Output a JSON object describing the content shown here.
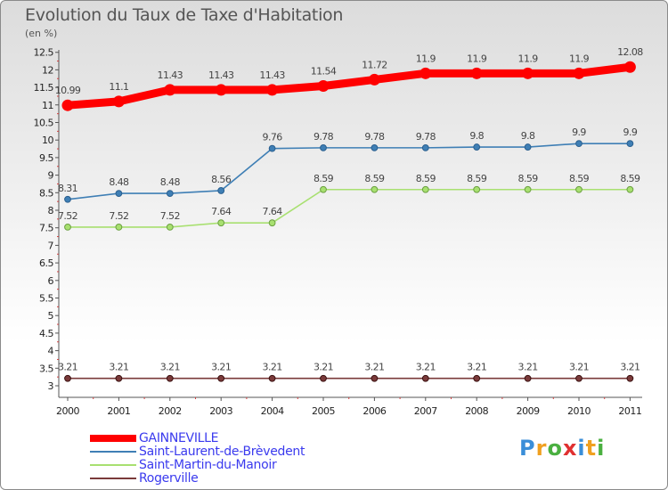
{
  "header": {
    "title": "Evolution du Taux de Taxe d'Habitation",
    "unit": "(en %)"
  },
  "chart_data": {
    "type": "line",
    "title": "Evolution du Taux de Taxe d'Habitation",
    "ylabel": "(en %)",
    "xlabel": "",
    "x": [
      "2000",
      "2001",
      "2002",
      "2003",
      "2004",
      "2005",
      "2006",
      "2007",
      "2008",
      "2009",
      "2010",
      "2011"
    ],
    "y_ticks": [
      "3",
      "3.5",
      "4",
      "4.5",
      "5",
      "5.5",
      "6",
      "6.5",
      "7",
      "7.5",
      "8",
      "8.5",
      "9",
      "9.5",
      "10",
      "10.5",
      "11",
      "11.5",
      "12",
      "12.5"
    ],
    "ylim": [
      3,
      12.5
    ],
    "grid": false,
    "legend_position": "bottom-left",
    "series": [
      {
        "name": "GAINNEVILLE",
        "color": "#ff0000",
        "values": [
          10.99,
          11.1,
          11.43,
          11.43,
          11.43,
          11.54,
          11.72,
          11.9,
          11.9,
          11.9,
          11.9,
          12.08
        ],
        "labels": [
          "10.99",
          "11.1",
          "11.43",
          "11.43",
          "11.43",
          "11.54",
          "11.72",
          "11.9",
          "11.9",
          "11.9",
          "11.9",
          "12.08"
        ]
      },
      {
        "name": "Saint-Laurent-de-Brèvedent",
        "color": "#3f7fb5",
        "values": [
          8.31,
          8.48,
          8.48,
          8.56,
          9.76,
          9.78,
          9.78,
          9.78,
          9.8,
          9.8,
          9.9,
          9.9
        ],
        "labels": [
          "8.31",
          "8.48",
          "8.48",
          "8.56",
          "9.76",
          "9.78",
          "9.78",
          "9.78",
          "9.8",
          "9.8",
          "9.9",
          "9.9"
        ]
      },
      {
        "name": "Saint-Martin-du-Manoir",
        "color": "#a8e070",
        "values": [
          7.52,
          7.52,
          7.52,
          7.64,
          7.64,
          8.59,
          8.59,
          8.59,
          8.59,
          8.59,
          8.59,
          8.59
        ],
        "labels": [
          "7.52",
          "7.52",
          "7.52",
          "7.64",
          "7.64",
          "8.59",
          "8.59",
          "8.59",
          "8.59",
          "8.59",
          "8.59",
          "8.59"
        ]
      },
      {
        "name": "Rogerville",
        "color": "#7a3a3a",
        "values": [
          3.21,
          3.21,
          3.21,
          3.21,
          3.21,
          3.21,
          3.21,
          3.21,
          3.21,
          3.21,
          3.21,
          3.21
        ],
        "labels": [
          "3.21",
          "3.21",
          "3.21",
          "3.21",
          "3.21",
          "3.21",
          "3.21",
          "3.21",
          "3.21",
          "3.21",
          "3.21",
          "3.21"
        ]
      }
    ]
  },
  "logo": {
    "text": "Proxiti",
    "letters": [
      {
        "ch": "P",
        "color": "#3a8ed8"
      },
      {
        "ch": "r",
        "color": "#f0a020"
      },
      {
        "ch": "o",
        "color": "#4ab040"
      },
      {
        "ch": "x",
        "color": "#e03030"
      },
      {
        "ch": "i",
        "color": "#3a8ed8"
      },
      {
        "ch": "t",
        "color": "#f0a020"
      },
      {
        "ch": "i",
        "color": "#4ab040"
      }
    ]
  }
}
